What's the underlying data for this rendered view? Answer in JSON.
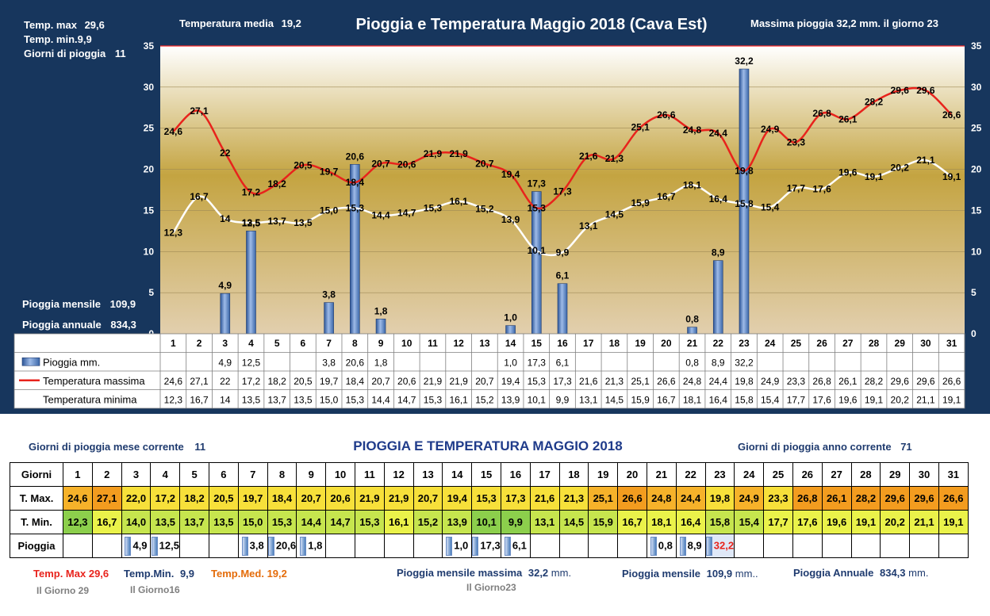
{
  "chart": {
    "title": "Pioggia e Temperatura Maggio 2018 (Cava Est)",
    "temp_max_label": "Temp. max",
    "temp_max_value": "29,6",
    "temp_min_label": "Temp. min.",
    "temp_min_value": "9,9",
    "giorni_pioggia_label": "Giorni di pioggia",
    "giorni_pioggia_value": "11",
    "temp_media_label": "Temperatura media",
    "temp_media_value": "19,2",
    "max_pioggia_text": "Massima pioggia  32,2 mm.  il giorno 23",
    "pioggia_mensile_label": "Pioggia mensile",
    "pioggia_mensile_value": "109,9",
    "pioggia_annuale_label": "Pioggia annuale",
    "pioggia_annuale_value": "834,3",
    "legend_rain": "Pioggia mm.",
    "legend_tmax": "Temperatura massima",
    "legend_tmin": "Temperatura minima"
  },
  "chart_data": {
    "type": "bar",
    "categories": [
      "1",
      "2",
      "3",
      "4",
      "5",
      "6",
      "7",
      "8",
      "9",
      "10",
      "11",
      "12",
      "13",
      "14",
      "15",
      "16",
      "17",
      "18",
      "19",
      "20",
      "21",
      "22",
      "23",
      "24",
      "25",
      "26",
      "27",
      "28",
      "29",
      "30",
      "31"
    ],
    "ylim": [
      0,
      35
    ],
    "yticks": [
      0,
      5,
      10,
      15,
      20,
      25,
      30,
      35
    ],
    "series": [
      {
        "name": "Pioggia mm.",
        "type": "bar",
        "color": "#4f81bd",
        "values": [
          null,
          null,
          4.9,
          12.5,
          null,
          null,
          3.8,
          20.6,
          1.8,
          null,
          null,
          null,
          null,
          1.0,
          17.3,
          6.1,
          null,
          null,
          null,
          null,
          0.8,
          8.9,
          32.2,
          null,
          null,
          null,
          null,
          null,
          null,
          null,
          null
        ],
        "labels": [
          "",
          "",
          "4,9",
          "12,5",
          "",
          "",
          "3,8",
          "20,6",
          "1,8",
          "",
          "",
          "",
          "",
          "1,0",
          "17,3",
          "6,1",
          "",
          "",
          "",
          "",
          "0,8",
          "8,9",
          "32,2",
          "",
          "",
          "",
          "",
          "",
          "",
          "",
          ""
        ]
      },
      {
        "name": "Temperatura massima",
        "type": "line",
        "color": "#e8231c",
        "values": [
          24.6,
          27.1,
          22.0,
          17.2,
          18.2,
          20.5,
          19.7,
          18.4,
          20.7,
          20.6,
          21.9,
          21.9,
          20.7,
          19.4,
          15.3,
          17.3,
          21.6,
          21.3,
          25.1,
          26.6,
          24.8,
          24.4,
          19.8,
          24.9,
          23.3,
          26.8,
          26.1,
          28.2,
          29.6,
          29.6,
          26.6
        ],
        "labels": [
          "24,6",
          "27,1",
          "22",
          "17,2",
          "18,2",
          "20,5",
          "19,7",
          "18,4",
          "20,7",
          "20,6",
          "21,9",
          "21,9",
          "20,7",
          "19,4",
          "15,3",
          "17,3",
          "21,6",
          "21,3",
          "25,1",
          "26,6",
          "24,8",
          "24,4",
          "19,8",
          "24,9",
          "23,3",
          "26,8",
          "26,1",
          "28,2",
          "29,6",
          "29,6",
          "26,6"
        ]
      },
      {
        "name": "Temperatura minima",
        "type": "line",
        "color": "#ffffff",
        "values": [
          12.3,
          16.7,
          14.0,
          13.5,
          13.7,
          13.5,
          15.0,
          15.3,
          14.4,
          14.7,
          15.3,
          16.1,
          15.2,
          13.9,
          10.1,
          9.9,
          13.1,
          14.5,
          15.9,
          16.7,
          18.1,
          16.4,
          15.8,
          15.4,
          17.7,
          17.6,
          19.6,
          19.1,
          20.2,
          21.1,
          19.1
        ],
        "labels": [
          "12,3",
          "16,7",
          "14",
          "13,5",
          "13,7",
          "13,5",
          "15,0",
          "15,3",
          "14,4",
          "14,7",
          "15,3",
          "16,1",
          "15,2",
          "13,9",
          "10,1",
          "9,9",
          "13,1",
          "14,5",
          "15,9",
          "16,7",
          "18,1",
          "16,4",
          "15,8",
          "15,4",
          "17,7",
          "17,6",
          "19,6",
          "19,1",
          "20,2",
          "21,1",
          "19,1"
        ]
      }
    ]
  },
  "table": {
    "title": "PIOGGIA E TEMPERATURA MAGGIO 2018",
    "giorni_mese_label": "Giorni di pioggia mese corrente",
    "giorni_mese_value": "11",
    "giorni_anno_label": "Giorni di pioggia anno corrente",
    "giorni_anno_value": "71",
    "row_labels": [
      "Giorni",
      "T. Max.",
      "T. Min.",
      "Pioggia"
    ],
    "tmax_cells": [
      "24,6",
      "27,1",
      "22,0",
      "17,2",
      "18,2",
      "20,5",
      "19,7",
      "18,4",
      "20,7",
      "20,6",
      "21,9",
      "21,9",
      "20,7",
      "19,4",
      "15,3",
      "17,3",
      "21,6",
      "21,3",
      "25,1",
      "26,6",
      "24,8",
      "24,4",
      "19,8",
      "24,9",
      "23,3",
      "26,8",
      "26,1",
      "28,2",
      "29,6",
      "29,6",
      "26,6"
    ],
    "tmin_cells": [
      "12,3",
      "16,7",
      "14,0",
      "13,5",
      "13,7",
      "13,5",
      "15,0",
      "15,3",
      "14,4",
      "14,7",
      "15,3",
      "16,1",
      "15,2",
      "13,9",
      "10,1",
      "9,9",
      "13,1",
      "14,5",
      "15,9",
      "16,7",
      "18,1",
      "16,4",
      "15,8",
      "15,4",
      "17,7",
      "17,6",
      "19,6",
      "19,1",
      "20,2",
      "21,1",
      "19,1"
    ],
    "rain_cells": [
      "",
      "",
      "4,9",
      "12,5",
      "",
      "",
      "3,8",
      "20,6",
      "1,8",
      "",
      "",
      "",
      "",
      "1,0",
      "17,3",
      "6,1",
      "",
      "",
      "",
      "",
      "0,8",
      "8,9",
      "32,2",
      "",
      "",
      "",
      "",
      "",
      "",
      "",
      ""
    ],
    "colors": {
      "title": "#1f3b8a",
      "dark_blue": "#1f3b6f",
      "red": "#e8231c",
      "orange": "#e46c0a",
      "grey": "#7f7f7f"
    }
  },
  "footer": {
    "temp_max_label": "Temp. Max",
    "temp_max_value": "29,6",
    "temp_max_day": "Il Giorno  29",
    "temp_min_label": "Temp.Min.",
    "temp_min_value": "9,9",
    "temp_min_day": "Il Giorno16",
    "temp_med_label": "Temp.Med.",
    "temp_med_value": "19,2",
    "pioggia_max_label": "Pioggia mensile massima",
    "pioggia_max_value": "32,2",
    "pioggia_max_unit": "mm.",
    "pioggia_max_day": "Il Giorno23",
    "pioggia_mensile_label": "Pioggia mensile",
    "pioggia_mensile_value": "109,9",
    "pioggia_mensile_unit": "mm..",
    "pioggia_annuale_label": "Pioggia Annuale",
    "pioggia_annuale_value": "834,3",
    "pioggia_annuale_unit": "mm."
  }
}
